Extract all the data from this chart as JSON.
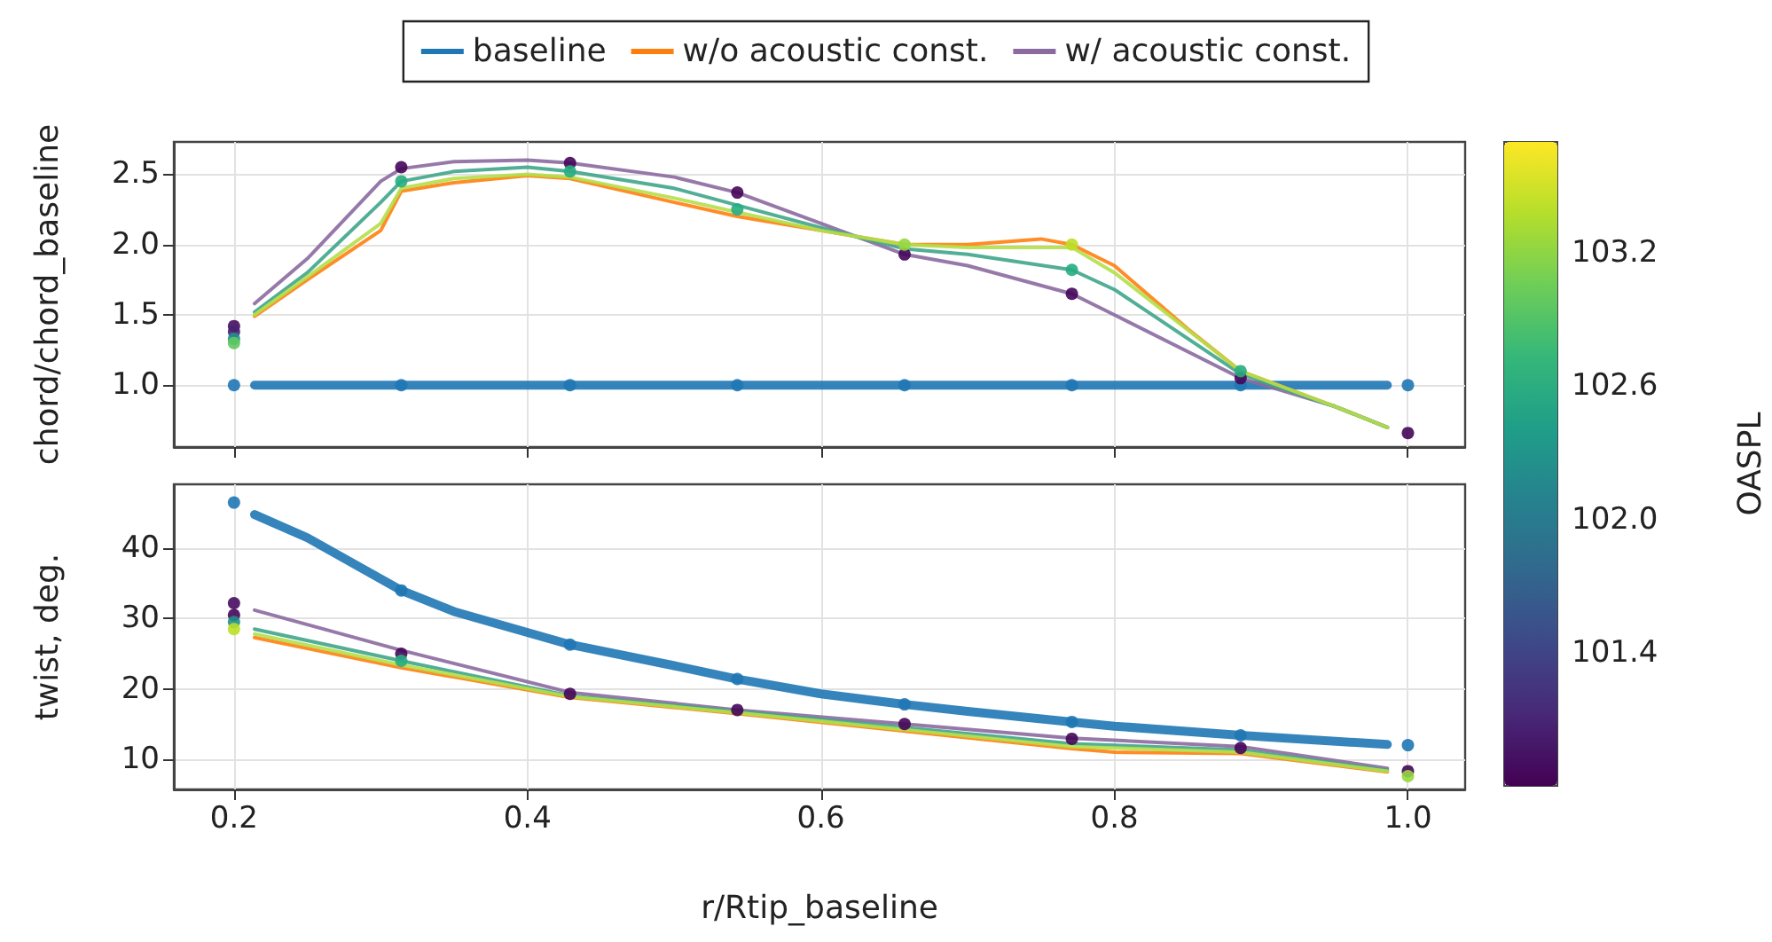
{
  "chart_data": [
    {
      "type": "line",
      "ylabel": "chord/chord_baseline",
      "legend": "top",
      "grid": true,
      "marker": "none",
      "tick_labels": "y",
      "xlim": [
        0.159,
        1.039
      ],
      "xticks": [
        0.2,
        0.4,
        0.6,
        0.8,
        1.0
      ],
      "ylim": [
        0.56,
        2.73
      ],
      "yticks": [
        {
          "value": 1,
          "label": "1.0"
        },
        1.5,
        {
          "value": 2,
          "label": "2.0"
        },
        2.5
      ],
      "clabel": "OASPL",
      "clim": [
        100.8,
        103.7
      ],
      "cticks": [
        101.4,
        {
          "value": 102,
          "label": "102.0"
        },
        102.6,
        103.2
      ],
      "series": [
        {
          "name": "baseline",
          "color": "#1f77b4",
          "x": [
            0.214,
            0.986
          ],
          "values": [
            1,
            1
          ]
        },
        {
          "name": "w/o acoustic const.",
          "color": "#ff7f0e",
          "x": [
            0.214,
            0.25,
            0.3,
            0.314,
            0.35,
            0.4,
            0.429,
            0.5,
            0.543,
            0.6,
            0.657,
            0.7,
            0.75,
            0.771,
            0.8,
            0.85,
            0.886,
            0.95,
            0.986
          ],
          "values": [
            1.49,
            1.75,
            2.1,
            2.38,
            2.44,
            2.49,
            2.47,
            2.3,
            2.2,
            2.1,
            2.0,
            2.0,
            2.04,
            2.0,
            1.85,
            1.4,
            1.1,
            0.85,
            0.7
          ]
        },
        {
          "name": "w/ acoustic const.",
          "color": "#8b6aa0",
          "x": [
            0.214,
            0.25,
            0.3,
            0.314,
            0.35,
            0.4,
            0.429,
            0.5,
            0.543,
            0.6,
            0.657,
            0.7,
            0.771,
            0.8,
            0.886,
            0.95,
            0.986
          ],
          "values": [
            1.58,
            1.9,
            2.45,
            2.54,
            2.59,
            2.6,
            2.58,
            2.48,
            2.37,
            2.15,
            1.93,
            1.85,
            1.65,
            1.5,
            1.05,
            0.85,
            0.7
          ]
        },
        {
          "color": "#3fa58a",
          "x": [
            0.214,
            0.25,
            0.3,
            0.314,
            0.35,
            0.4,
            0.429,
            0.5,
            0.543,
            0.6,
            0.657,
            0.7,
            0.771,
            0.8,
            0.886,
            0.95,
            0.986
          ],
          "values": [
            1.52,
            1.8,
            2.3,
            2.45,
            2.52,
            2.55,
            2.52,
            2.4,
            2.28,
            2.12,
            1.97,
            1.93,
            1.82,
            1.68,
            1.08,
            0.85,
            0.7
          ]
        },
        {
          "color": "#b5de4a",
          "x": [
            0.214,
            0.25,
            0.3,
            0.314,
            0.35,
            0.4,
            0.429,
            0.5,
            0.543,
            0.6,
            0.657,
            0.7,
            0.771,
            0.8,
            0.886,
            0.95,
            0.986
          ],
          "values": [
            1.5,
            1.77,
            2.15,
            2.4,
            2.47,
            2.5,
            2.48,
            2.33,
            2.23,
            2.1,
            2.0,
            1.98,
            1.98,
            1.8,
            1.1,
            0.85,
            0.7
          ]
        },
        {
          "type": "scatter",
          "marker": "circle",
          "color": "#1f77b4",
          "x": [
            0.2,
            0.314,
            0.429,
            0.543,
            0.657,
            0.771,
            0.886,
            1.0
          ],
          "values": [
            1,
            1,
            1,
            1,
            1,
            1,
            1,
            1
          ]
        },
        {
          "type": "scatter",
          "marker": "circle",
          "x": [
            0.2,
            0.2,
            0.2,
            0.2,
            0.314,
            0.314,
            0.429,
            0.429,
            0.543,
            0.543,
            0.657,
            0.657,
            0.771,
            0.771,
            0.771,
            0.886,
            0.886,
            1.0
          ],
          "values": [
            1.42,
            1.38,
            1.33,
            1.3,
            2.55,
            2.45,
            2.58,
            2.52,
            2.37,
            2.25,
            1.93,
            2.0,
            1.65,
            1.82,
            2.0,
            1.05,
            1.1,
            0.66
          ],
          "colors": [
            "#470d60",
            "#482173",
            "#21918c",
            "#5ec962",
            "#450559",
            "#27ad81",
            "#450559",
            "#27ad81",
            "#450559",
            "#27ad81",
            "#450559",
            "#95d840",
            "#450559",
            "#27ad81",
            "#bddf26",
            "#450559",
            "#27ad81",
            "#450559"
          ]
        }
      ]
    },
    {
      "type": "line",
      "ylabel": "twist, deg.",
      "xlabel": "r/Rtip_baseline",
      "grid": true,
      "marker": "none",
      "xlim": [
        0.159,
        1.039
      ],
      "xticks": [
        0.2,
        0.4,
        0.6,
        0.8,
        {
          "value": 1,
          "label": "1.0"
        }
      ],
      "ylim": [
        5.7,
        49.1
      ],
      "yticks": [
        10,
        20,
        30,
        40
      ],
      "series": [
        {
          "color": "#1f77b4",
          "x": [
            0.214,
            0.25,
            0.314,
            0.35,
            0.429,
            0.5,
            0.543,
            0.6,
            0.657,
            0.7,
            0.771,
            0.8,
            0.886,
            0.986
          ],
          "values": [
            44.8,
            41.5,
            34,
            31,
            26.3,
            23.3,
            21.4,
            19.3,
            17.8,
            16.8,
            15.3,
            14.7,
            13.4,
            12.1
          ]
        },
        {
          "color": "#ff7f0e",
          "x": [
            0.214,
            0.314,
            0.429,
            0.543,
            0.657,
            0.771,
            0.8,
            0.886,
            0.986
          ],
          "values": [
            27.3,
            23,
            18.8,
            16.5,
            14,
            11.5,
            11,
            10.8,
            8.2
          ]
        },
        {
          "color": "#8b6aa0",
          "x": [
            0.214,
            0.314,
            0.429,
            0.543,
            0.657,
            0.771,
            0.886,
            0.986
          ],
          "values": [
            31.2,
            25.5,
            19.5,
            17,
            15,
            13,
            11.8,
            8.7
          ]
        },
        {
          "color": "#3fa58a",
          "x": [
            0.214,
            0.314,
            0.429,
            0.543,
            0.657,
            0.771,
            0.886,
            0.986
          ],
          "values": [
            28.5,
            24,
            19,
            16.8,
            14.5,
            12.2,
            11.3,
            8.4
          ]
        },
        {
          "color": "#b5de4a",
          "x": [
            0.214,
            0.314,
            0.429,
            0.543,
            0.657,
            0.771,
            0.886,
            0.986
          ],
          "values": [
            27.8,
            23.4,
            18.9,
            16.6,
            14.2,
            11.8,
            11,
            8.3
          ]
        },
        {
          "type": "scatter",
          "marker": "circle",
          "color": "#1f77b4",
          "x": [
            0.2,
            0.314,
            0.429,
            0.543,
            0.657,
            0.771,
            0.886,
            1.0
          ],
          "values": [
            46.5,
            34,
            26.3,
            21.4,
            17.8,
            15.3,
            13.4,
            12
          ]
        },
        {
          "type": "scatter",
          "marker": "circle",
          "x": [
            0.2,
            0.2,
            0.2,
            0.2,
            0.314,
            0.314,
            0.429,
            0.543,
            0.657,
            0.771,
            0.886,
            1.0,
            1.0
          ],
          "values": [
            32.2,
            30.5,
            29.5,
            28.5,
            25,
            24,
            19.3,
            17,
            15,
            12.9,
            11.6,
            8.3,
            7.6
          ],
          "colors": [
            "#470d60",
            "#450559",
            "#21918c",
            "#bddf26",
            "#450559",
            "#27ad81",
            "#450559",
            "#450559",
            "#450559",
            "#450559",
            "#450559",
            "#450559",
            "#95d840"
          ]
        }
      ]
    }
  ]
}
